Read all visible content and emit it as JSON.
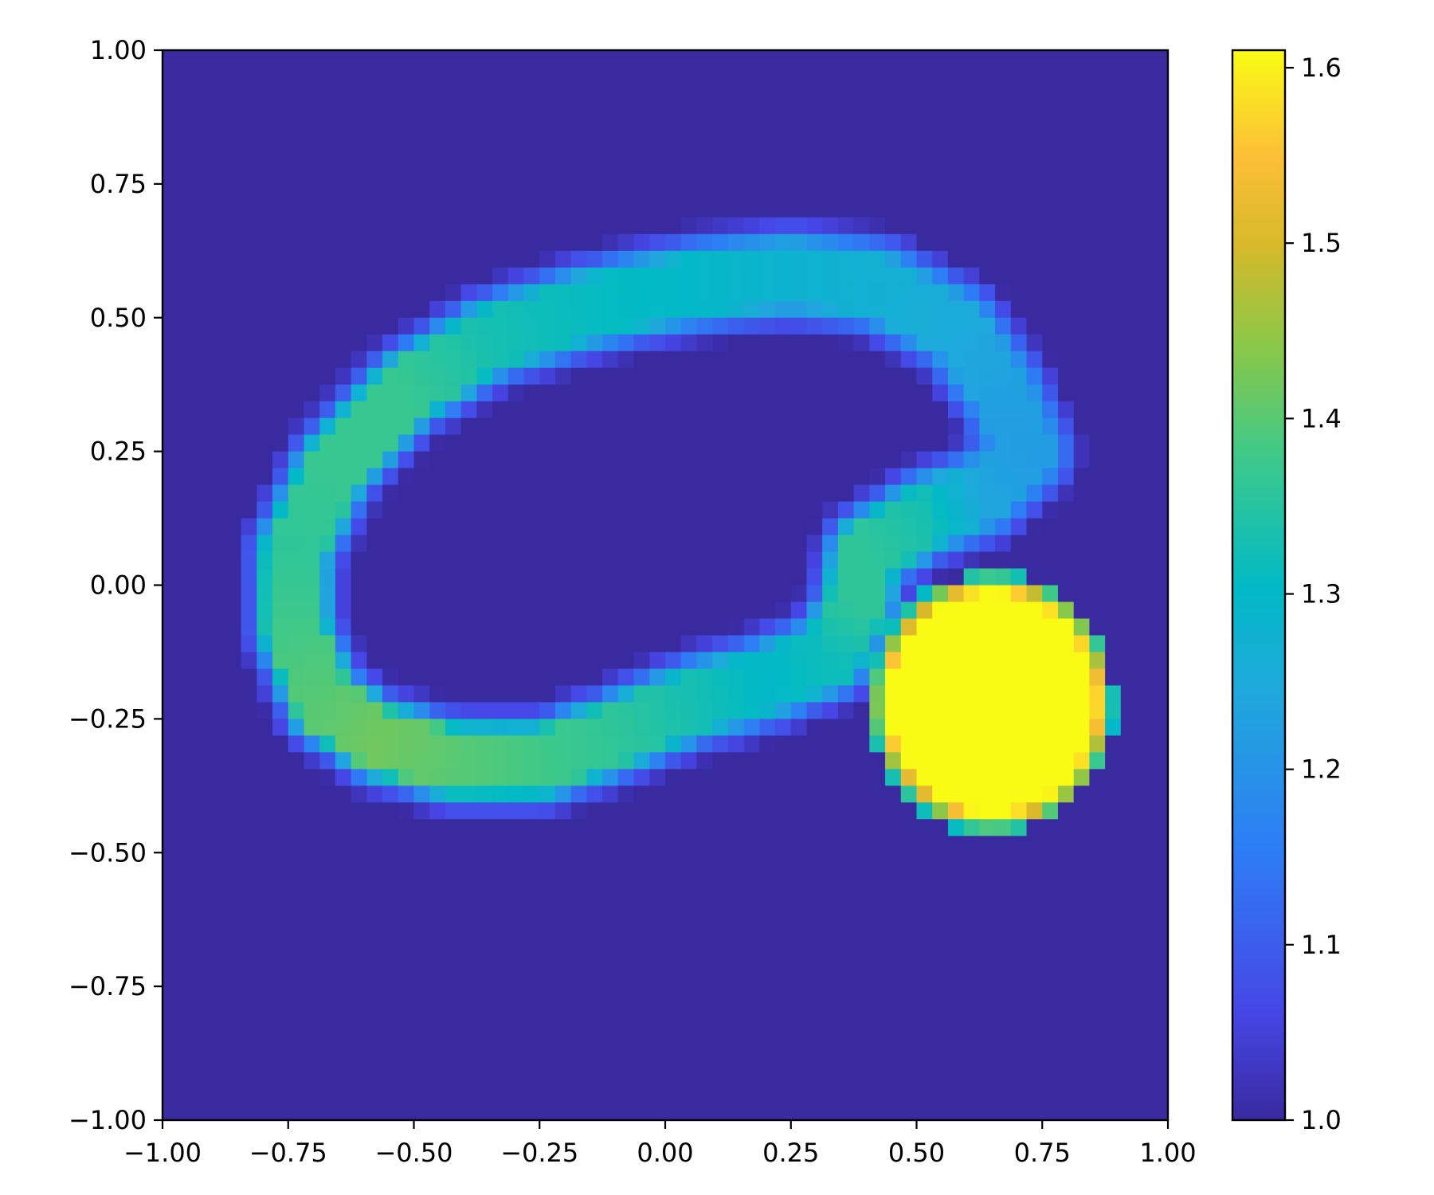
{
  "chart_data": {
    "type": "heatmap",
    "title": "",
    "xlabel": "",
    "ylabel": "",
    "xlim": [
      -1.0,
      1.0
    ],
    "ylim": [
      -1.0,
      1.0
    ],
    "grid": false,
    "x_tick_values": [
      -1.0,
      -0.75,
      -0.5,
      -0.25,
      0.0,
      0.25,
      0.5,
      0.75,
      1.0
    ],
    "x_tick_labels": [
      "−1.00",
      "−0.75",
      "−0.50",
      "−0.25",
      "0.00",
      "0.25",
      "0.50",
      "0.75",
      "1.00"
    ],
    "y_tick_values": [
      -1.0,
      -0.75,
      -0.5,
      -0.25,
      0.0,
      0.25,
      0.5,
      0.75,
      1.0
    ],
    "y_tick_labels": [
      "−1.00",
      "−0.75",
      "−0.50",
      "−0.25",
      "0.00",
      "0.25",
      "0.50",
      "0.75",
      "1.00"
    ],
    "colorbar": {
      "vmin": 1.0,
      "vmax": 1.61,
      "tick_values": [
        1.0,
        1.1,
        1.2,
        1.3,
        1.4,
        1.5,
        1.6
      ],
      "tick_labels": [
        "1.0",
        "1.1",
        "1.2",
        "1.3",
        "1.4",
        "1.5",
        "1.6"
      ],
      "colormap_stops": [
        {
          "value": 0.0,
          "color": "#3a2aa0"
        },
        {
          "value": 0.1,
          "color": "#4646e6"
        },
        {
          "value": 0.25,
          "color": "#2e7cf5"
        },
        {
          "value": 0.4,
          "color": "#1fa8dc"
        },
        {
          "value": 0.5,
          "color": "#02bac5"
        },
        {
          "value": 0.62,
          "color": "#3ec98a"
        },
        {
          "value": 0.72,
          "color": "#88c84a"
        },
        {
          "value": 0.82,
          "color": "#d8b92a"
        },
        {
          "value": 0.9,
          "color": "#fdbf38"
        },
        {
          "value": 1.0,
          "color": "#f9fb15"
        }
      ]
    },
    "grid_resolution": 64,
    "background_value": 1.0,
    "features": [
      {
        "kind": "blob",
        "cx": 0.65,
        "cy": -0.22,
        "radius": 0.245,
        "value": 1.61
      },
      {
        "kind": "ring-band",
        "path": [
          [
            -0.74,
            0.06
          ],
          [
            -0.66,
            0.22
          ],
          [
            -0.52,
            0.36
          ],
          [
            -0.35,
            0.46
          ],
          [
            -0.15,
            0.52
          ],
          [
            0.05,
            0.56
          ],
          [
            0.25,
            0.58
          ],
          [
            0.42,
            0.56
          ],
          [
            0.58,
            0.48
          ],
          [
            0.67,
            0.36
          ],
          [
            0.72,
            0.25
          ],
          [
            0.63,
            0.17
          ],
          [
            0.52,
            0.13
          ],
          [
            0.4,
            0.06
          ],
          [
            0.38,
            -0.04
          ],
          [
            0.33,
            -0.13
          ],
          [
            0.2,
            -0.18
          ],
          [
            0.05,
            -0.22
          ],
          [
            -0.1,
            -0.28
          ],
          [
            -0.25,
            -0.33
          ],
          [
            -0.42,
            -0.33
          ],
          [
            -0.57,
            -0.29
          ],
          [
            -0.68,
            -0.22
          ],
          [
            -0.74,
            -0.08
          ],
          [
            -0.74,
            0.06
          ]
        ],
        "values_along_path": [
          1.36,
          1.37,
          1.37,
          1.33,
          1.31,
          1.3,
          1.28,
          1.27,
          1.25,
          1.23,
          1.22,
          1.24,
          1.33,
          1.36,
          1.36,
          1.32,
          1.3,
          1.33,
          1.36,
          1.38,
          1.4,
          1.42,
          1.4,
          1.38,
          1.36
        ],
        "half_width": 0.085
      }
    ]
  }
}
